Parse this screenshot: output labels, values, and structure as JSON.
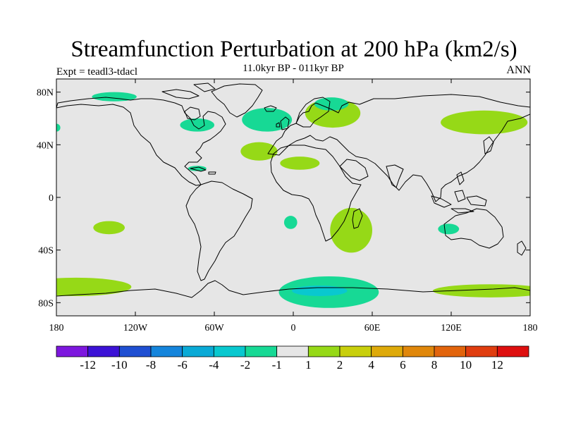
{
  "title": "Streamfunction Perturbation at 200 hPa (km2/s)",
  "subtitle": "11.0kyr BP - 011kyr BP",
  "experiment": "Expt = teadl3-tdacl",
  "season": "ANN",
  "map": {
    "projection": "cylindrical equidistant",
    "lon_range": [
      -180,
      180
    ],
    "lat_range": [
      -90,
      90
    ],
    "ocean_land_fill": "#e6e6e6",
    "coast_color": "#000000"
  },
  "lat_ticks": [
    {
      "value": 80,
      "label": "80N"
    },
    {
      "value": 40,
      "label": "40N"
    },
    {
      "value": 0,
      "label": "0"
    },
    {
      "value": -40,
      "label": "40S"
    },
    {
      "value": -80,
      "label": "80S"
    }
  ],
  "lon_ticks": [
    {
      "value": -180,
      "label": "180"
    },
    {
      "value": -120,
      "label": "120W"
    },
    {
      "value": -60,
      "label": "60W"
    },
    {
      "value": 0,
      "label": "0"
    },
    {
      "value": 60,
      "label": "60E"
    },
    {
      "value": 120,
      "label": "120E"
    },
    {
      "value": 180,
      "label": "180"
    }
  ],
  "colorbar": {
    "colors": [
      "#7d17de",
      "#3c12d6",
      "#1f4fd2",
      "#1585dc",
      "#0aaad6",
      "#09c8cf",
      "#17d995",
      "#e6e6e6",
      "#96d917",
      "#c8cf0c",
      "#deaa0a",
      "#e0870b",
      "#e2640c",
      "#e03d0f",
      "#de0f0f"
    ],
    "labels": [
      "-12",
      "-10",
      "-8",
      "-6",
      "-4",
      "-2",
      "-1",
      "1",
      "2",
      "4",
      "6",
      "8",
      "10",
      "12"
    ]
  },
  "anomalies": [
    {
      "name": "n-pacific-neg-small",
      "sign": "negative",
      "level": "-1",
      "color": "#17d995",
      "lon": -136,
      "lat": 76.5,
      "rlon": 17,
      "rlat": 3.5
    },
    {
      "name": "nw-pacific-neg",
      "sign": "negative",
      "level": "-1",
      "color": "#17d995",
      "lon": -180,
      "lat": 53,
      "rlon": 3,
      "rlat": 3
    },
    {
      "name": "n-america-neg",
      "sign": "negative",
      "level": "-1",
      "color": "#17d995",
      "lon": -73,
      "lat": 55,
      "rlon": 13,
      "rlat": 5
    },
    {
      "name": "caribbean-neg",
      "sign": "negative",
      "level": "-1",
      "color": "#17d995",
      "lon": -73,
      "lat": 22,
      "rlon": 7,
      "rlat": 2
    },
    {
      "name": "n-atlantic-neg",
      "sign": "negative",
      "level": "-1",
      "color": "#17d995",
      "lon": -20,
      "lat": 59,
      "rlon": 19,
      "rlat": 9
    },
    {
      "name": "scandinavia-pos",
      "sign": "positive",
      "level": "1",
      "color": "#96d917",
      "lon": 30,
      "lat": 64,
      "rlon": 21,
      "rlat": 11
    },
    {
      "name": "arctic-neg",
      "sign": "negative",
      "level": "-1",
      "color": "#17d995",
      "lon": 29,
      "lat": 71,
      "rlon": 13,
      "rlat": 5
    },
    {
      "name": "atlantic-pos-1",
      "sign": "positive",
      "level": "1",
      "color": "#96d917",
      "lon": -26,
      "lat": 35,
      "rlon": 14,
      "rlat": 7
    },
    {
      "name": "n-africa-pos",
      "sign": "positive",
      "level": "1",
      "color": "#96d917",
      "lon": 5,
      "lat": 26,
      "rlon": 15,
      "rlat": 5
    },
    {
      "name": "siberia-pos",
      "sign": "positive",
      "level": "1",
      "color": "#96d917",
      "lon": 145,
      "lat": 57,
      "rlon": 33,
      "rlat": 9
    },
    {
      "name": "s-pacific-pos",
      "sign": "positive",
      "level": "1",
      "color": "#96d917",
      "lon": -140,
      "lat": -23,
      "rlon": 12,
      "rlat": 5
    },
    {
      "name": "s-atlantic-neg",
      "sign": "negative",
      "level": "-1",
      "color": "#17d995",
      "lon": -2,
      "lat": -19,
      "rlon": 5,
      "rlat": 5
    },
    {
      "name": "madagascar-pos",
      "sign": "positive",
      "level": "1",
      "color": "#96d917",
      "lon": 44,
      "lat": -25,
      "rlon": 16,
      "rlat": 17
    },
    {
      "name": "australia-neg",
      "sign": "negative",
      "level": "-1",
      "color": "#17d995",
      "lon": 118,
      "lat": -24,
      "rlon": 8,
      "rlat": 4
    },
    {
      "name": "s-pacific-pos-2",
      "sign": "positive",
      "level": "1",
      "color": "#96d917",
      "lon": -165,
      "lat": -68,
      "rlon": 42,
      "rlat": 7
    },
    {
      "name": "antarctic-neg",
      "sign": "negative",
      "level": "-1",
      "color": "#17d995",
      "lon": 27,
      "lat": -72,
      "rlon": 38,
      "rlat": 12
    },
    {
      "name": "antarctic-neg-inner",
      "sign": "negative",
      "level": "-2",
      "color": "#09c8cf",
      "lon": 20,
      "lat": -71,
      "rlon": 21,
      "rlat": 4
    },
    {
      "name": "southern-ocean-pos",
      "sign": "positive",
      "level": "1",
      "color": "#96d917",
      "lon": 150,
      "lat": -71,
      "rlon": 44,
      "rlat": 5
    }
  ]
}
